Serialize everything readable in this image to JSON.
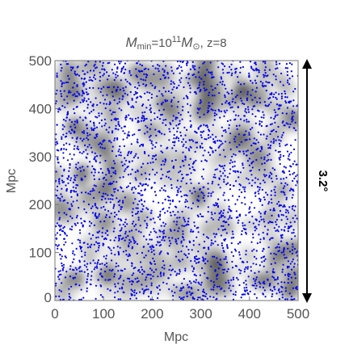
{
  "chart_data": {
    "type": "scatter",
    "title": {
      "m_symbol": "M",
      "m_sub": "min",
      "equals": "=10",
      "exponent": "11",
      "m2_symbol": "M",
      "m2_sub": "⊙",
      "redshift": ", z=8"
    },
    "xlabel": "Mpc",
    "ylabel": "Mpc",
    "xlim": [
      0,
      500
    ],
    "ylim": [
      0,
      500
    ],
    "xticks": [
      "0",
      "100",
      "200",
      "300",
      "400",
      "500"
    ],
    "yticks": [
      "0",
      "100",
      "200",
      "300",
      "400",
      "500"
    ],
    "xtick_values": [
      0,
      100,
      200,
      300,
      400,
      500
    ],
    "ytick_values": [
      0,
      100,
      200,
      300,
      400,
      500
    ],
    "background": "grayscale density field",
    "point_color": "#0000ee",
    "point_count_approx": 3000,
    "grid": false,
    "legend": "none",
    "side_annotation": {
      "label": "3.2°",
      "span_data": [
        0,
        500
      ]
    }
  }
}
